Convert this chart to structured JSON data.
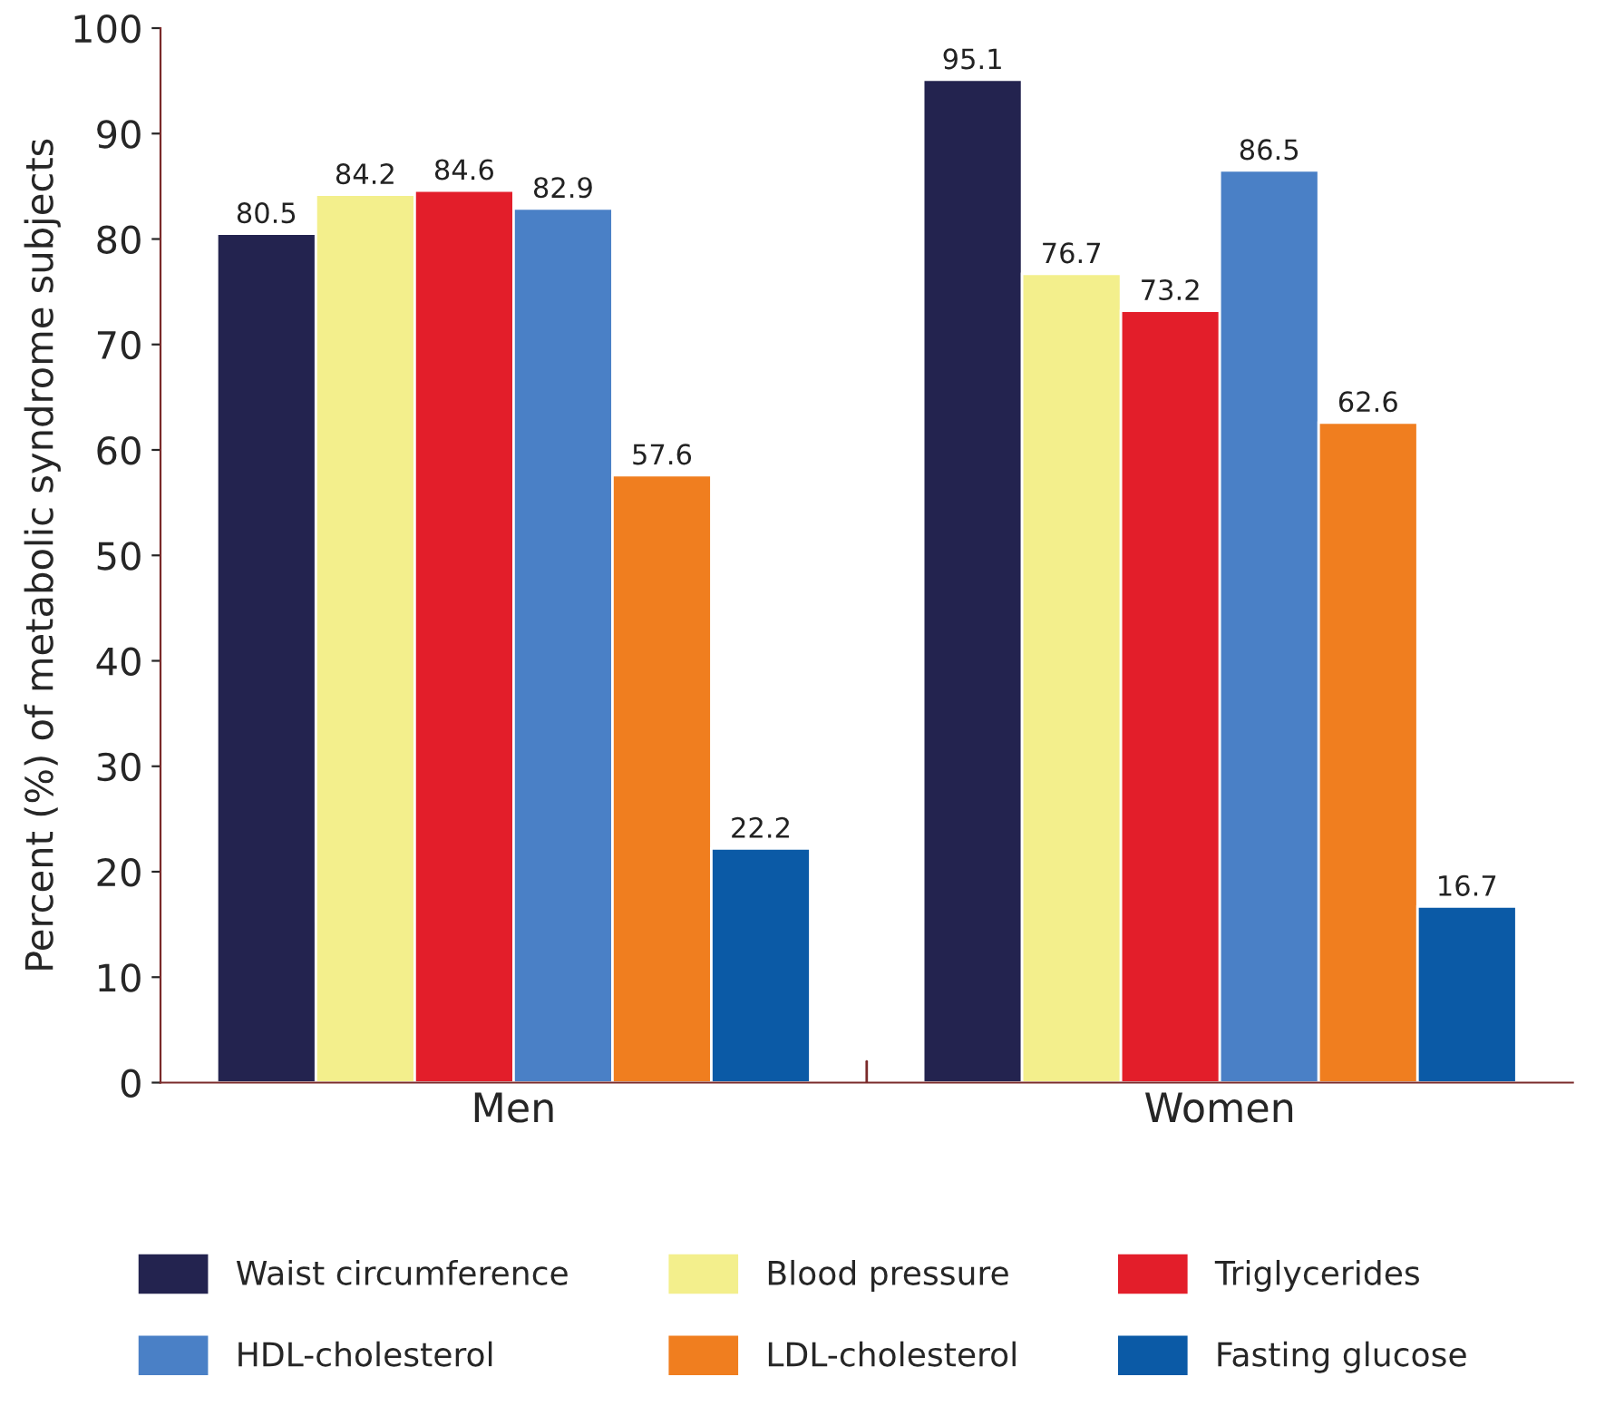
{
  "chart_data": {
    "type": "bar",
    "ylabel": "Percent (%) of metabolic syndrome subjects",
    "categories": [
      "Men",
      "Women"
    ],
    "series": [
      {
        "name": "Waist circumference",
        "color": "#23234f",
        "values": [
          80.5,
          95.1
        ]
      },
      {
        "name": "Blood pressure",
        "color": "#f3ef8c",
        "values": [
          84.2,
          76.7
        ]
      },
      {
        "name": "Triglycerides",
        "color": "#e31e2a",
        "values": [
          84.6,
          73.2
        ]
      },
      {
        "name": "HDL-cholesterol",
        "color": "#4a80c6",
        "values": [
          82.9,
          86.5
        ]
      },
      {
        "name": "LDL-cholesterol",
        "color": "#f07e1f",
        "values": [
          57.6,
          62.6
        ]
      },
      {
        "name": "Fasting glucose",
        "color": "#0b5aa6",
        "values": [
          22.2,
          16.7
        ]
      }
    ],
    "ylim": [
      0,
      100
    ],
    "yticks": [
      0,
      10,
      20,
      30,
      40,
      50,
      60,
      70,
      80,
      90,
      100
    ],
    "data_labels": true,
    "grid": false,
    "legend": "bottom"
  }
}
